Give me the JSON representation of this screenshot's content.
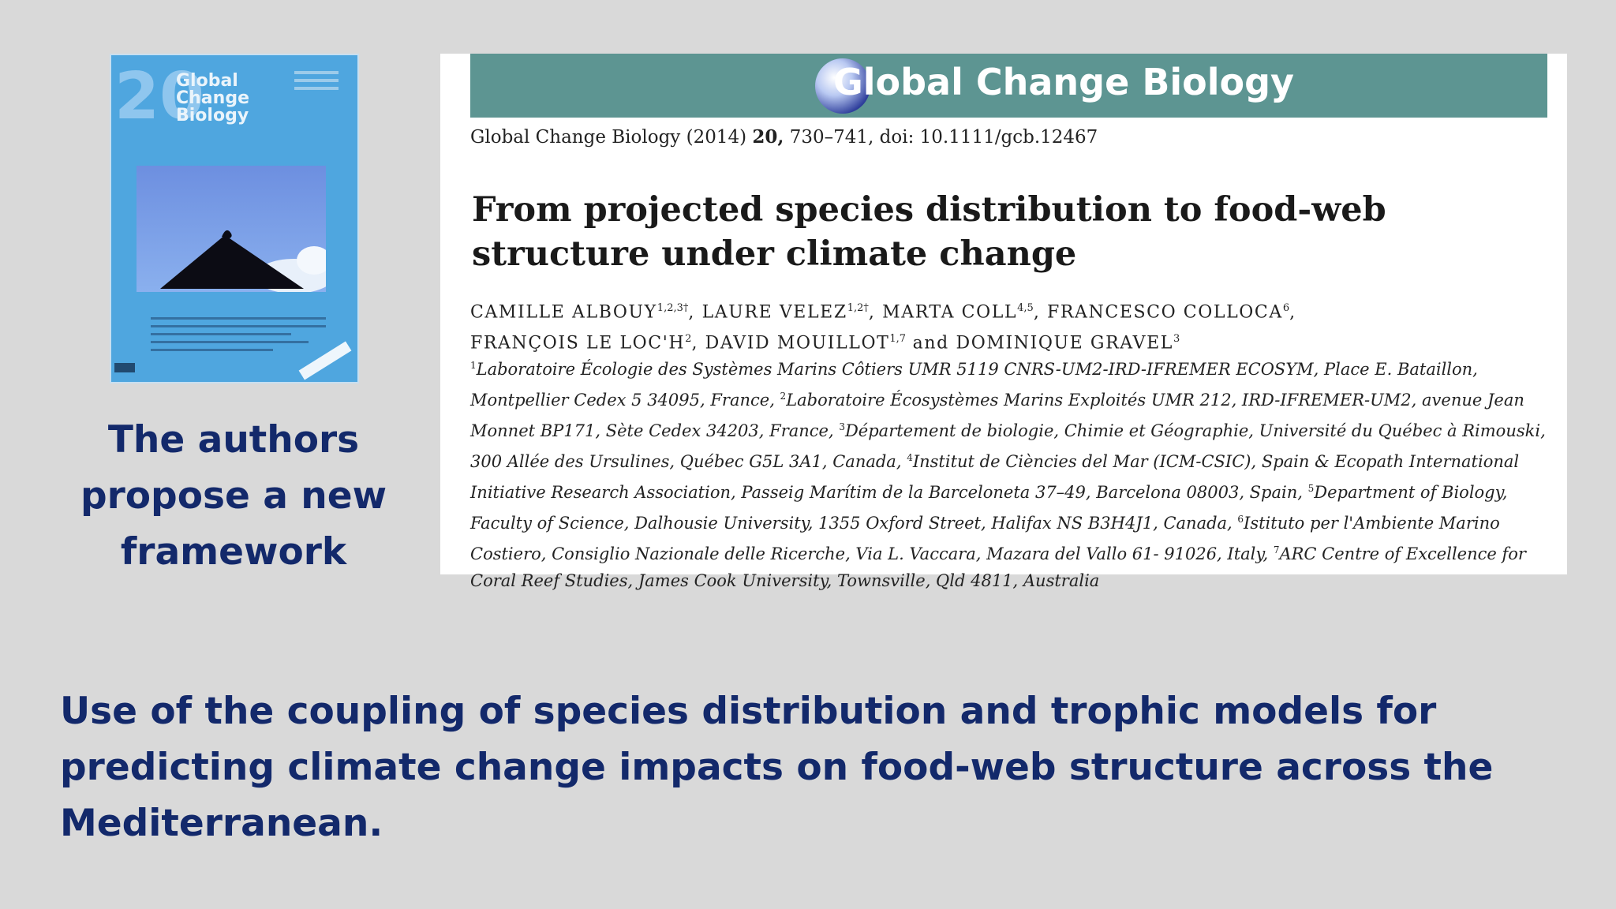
{
  "cover": {
    "badge": "20",
    "title_lines": [
      "Global",
      "Change",
      "Biology"
    ]
  },
  "sidebar": {
    "note": "The authors propose a new framework"
  },
  "paper": {
    "journal_banner": "Global Change Biology",
    "citation": {
      "journal": "Global Change Biology",
      "year": "(2014)",
      "volume": "20,",
      "pages": "730–741, doi: 10.1111/gcb.12467"
    },
    "title": "From projected species distribution to food-web structure under climate change",
    "authors": [
      {
        "name": "CAMILLE ALBOUY",
        "sup": "1,2,3†",
        "sep": ", "
      },
      {
        "name": "LAURE VELEZ",
        "sup": "1,2†",
        "sep": ", "
      },
      {
        "name": "MARTA COLL",
        "sup": "4,5",
        "sep": ", "
      },
      {
        "name": "FRANCESCO COLLOCA",
        "sup": "6",
        "sep": ","
      },
      {
        "name": "FRANÇOIS LE LOC'H",
        "sup": "2",
        "sep": ", "
      },
      {
        "name": "DAVID MOUILLOT",
        "sup": "1,7",
        "sep": " and "
      },
      {
        "name": "DOMINIQUE GRAVEL",
        "sup": "3",
        "sep": ""
      }
    ],
    "affiliations": [
      {
        "sup": "1",
        "text": "Laboratoire Écologie des Systèmes Marins Côtiers UMR 5119 CNRS-UM2-IRD-IFREMER ECOSYM, Place E. Bataillon, Montpellier Cedex 5 34095, France, "
      },
      {
        "sup": "2",
        "text": "Laboratoire Écosystèmes Marins Exploités UMR 212, IRD-IFREMER-UM2, avenue Jean Monnet BP171, Sète Cedex 34203, France, "
      },
      {
        "sup": "3",
        "text": "Département de biologie, Chimie et Géographie, Université du Québec à Rimouski, 300 Allée des Ursulines, Québec G5L 3A1, Canada, "
      },
      {
        "sup": "4",
        "text": "Institut de Ciències del Mar (ICM-CSIC), Spain & Ecopath International Initiative Research Association, Passeig Marítim de la Barceloneta 37–49, Barcelona 08003, Spain, "
      },
      {
        "sup": "5",
        "text": "Department of Biology, Faculty of Science, Dalhousie University, 1355 Oxford Street, Halifax NS B3H4J1, Canada, "
      },
      {
        "sup": "6",
        "text": "Istituto per l'Ambiente Marino Costiero, Consiglio Nazionale delle Ricerche, Via L. Vaccara, Mazara del Vallo 61- 91026, Italy, "
      },
      {
        "sup": "7",
        "text": "ARC Centre of Excellence for Coral Reef Studies, James Cook University, Townsville, Qld 4811, Australia"
      }
    ]
  },
  "summary": "Use of the coupling of species distribution and trophic models for predicting climate change impacts on food-web structure across the Mediterranean.",
  "colors": {
    "background": "#d9d9d9",
    "accent_text": "#13296b",
    "banner": "#5d9592",
    "cover": "#4fa6df"
  }
}
